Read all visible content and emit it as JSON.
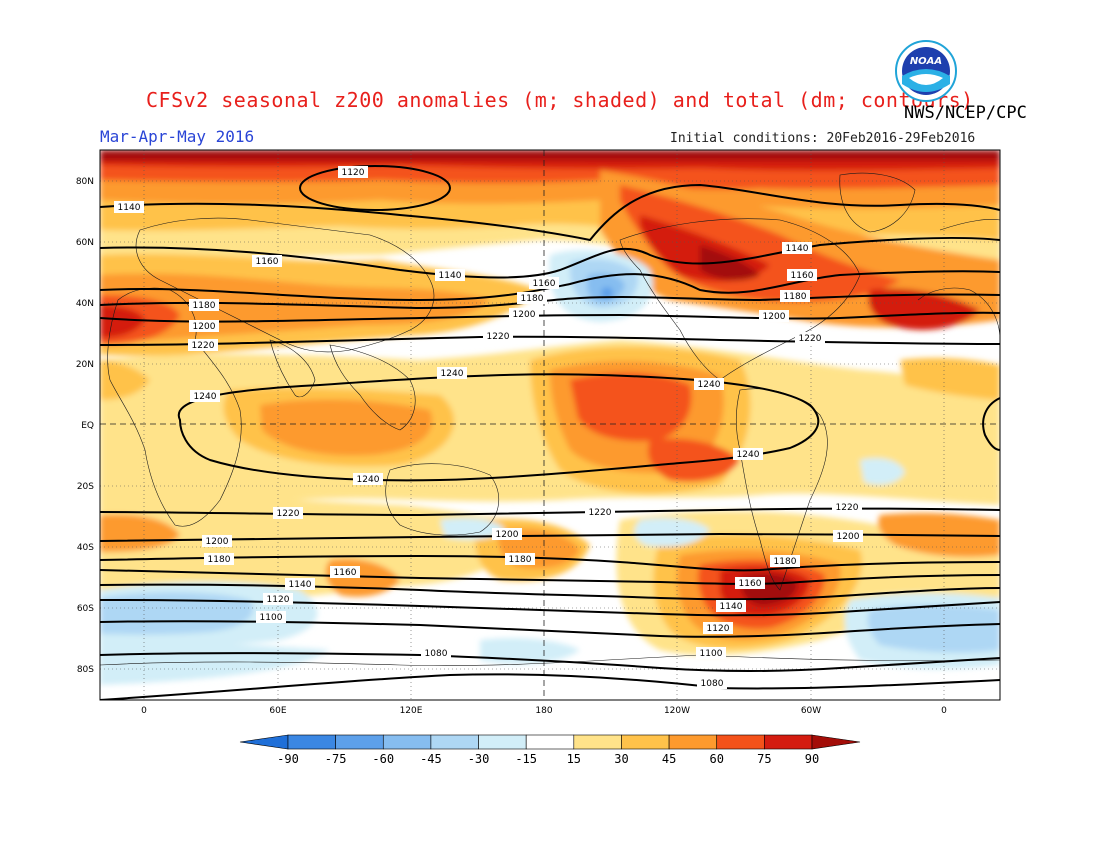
{
  "header": {
    "title": "CFSv2 seasonal z200 anomalies (m; shaded) and total (dm; contours)",
    "agency": "NWS/NCEP/CPC",
    "season": "Mar-Apr-May 2016",
    "initial_conditions": "Initial conditions: 20Feb2016-29Feb2016",
    "logo_text": "NOAA"
  },
  "axes": {
    "lat_labels": [
      "80N",
      "60N",
      "40N",
      "20N",
      "EQ",
      "20S",
      "40S",
      "60S",
      "80S"
    ],
    "lon_labels": [
      "0",
      "60E",
      "120E",
      "180",
      "120W",
      "60W",
      "0"
    ]
  },
  "colorbar": {
    "labels": [
      "-90",
      "-75",
      "-60",
      "-45",
      "-30",
      "-15",
      "15",
      "30",
      "45",
      "60",
      "75",
      "90"
    ],
    "colors": [
      "#1f6fd8",
      "#3b87e3",
      "#5da0ea",
      "#86bdf0",
      "#aed7f4",
      "#d2eef8",
      "#ffffff",
      "#ffe38a",
      "#ffc24a",
      "#fd9a2e",
      "#f4521a",
      "#d41c10",
      "#a30d08"
    ]
  },
  "contours": {
    "labels": [
      "1080",
      "1100",
      "1120",
      "1140",
      "1160",
      "1180",
      "1200",
      "1220",
      "1240"
    ]
  }
}
